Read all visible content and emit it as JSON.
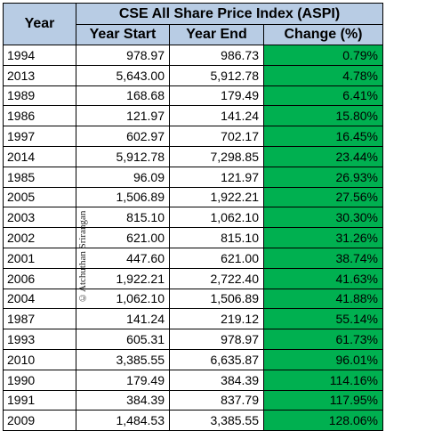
{
  "table": {
    "title": "CSE All Share Price Index (ASPI)",
    "headers": {
      "year": "Year",
      "year_start": "Year Start",
      "year_end": "Year End",
      "change": "Change (%)"
    },
    "rows": [
      {
        "year": "1994",
        "start": "978.97",
        "end": "986.73",
        "change": "0.79%"
      },
      {
        "year": "2013",
        "start": "5,643.00",
        "end": "5,912.78",
        "change": "4.78%"
      },
      {
        "year": "1989",
        "start": "168.68",
        "end": "179.49",
        "change": "6.41%"
      },
      {
        "year": "1986",
        "start": "121.97",
        "end": "141.24",
        "change": "15.80%"
      },
      {
        "year": "1997",
        "start": "602.97",
        "end": "702.17",
        "change": "16.45%"
      },
      {
        "year": "2014",
        "start": "5,912.78",
        "end": "7,298.85",
        "change": "23.44%"
      },
      {
        "year": "1985",
        "start": "96.09",
        "end": "121.97",
        "change": "26.93%"
      },
      {
        "year": "2005",
        "start": "1,506.89",
        "end": "1,922.21",
        "change": "27.56%"
      },
      {
        "year": "2003",
        "start": "815.10",
        "end": "1,062.10",
        "change": "30.30%"
      },
      {
        "year": "2002",
        "start": "621.00",
        "end": "815.10",
        "change": "31.26%"
      },
      {
        "year": "2001",
        "start": "447.60",
        "end": "621.00",
        "change": "38.74%"
      },
      {
        "year": "2006",
        "start": "1,922.21",
        "end": "2,722.40",
        "change": "41.63%"
      },
      {
        "year": "2004",
        "start": "1,062.10",
        "end": "1,506.89",
        "change": "41.88%"
      },
      {
        "year": "1987",
        "start": "141.24",
        "end": "219.12",
        "change": "55.14%"
      },
      {
        "year": "1993",
        "start": "605.31",
        "end": "978.97",
        "change": "61.73%"
      },
      {
        "year": "2010",
        "start": "3,385.55",
        "end": "6,635.87",
        "change": "96.01%"
      },
      {
        "year": "1990",
        "start": "179.49",
        "end": "384.39",
        "change": "114.16%"
      },
      {
        "year": "1991",
        "start": "384.39",
        "end": "837.79",
        "change": "117.95%"
      },
      {
        "year": "2009",
        "start": "1,484.53",
        "end": "3,385.55",
        "change": "128.06%"
      }
    ]
  },
  "watermark": "©Atchuthan Srirangan",
  "colors": {
    "header_background": "#b8cce4",
    "change_background": "#00b050",
    "border": "#000000"
  }
}
